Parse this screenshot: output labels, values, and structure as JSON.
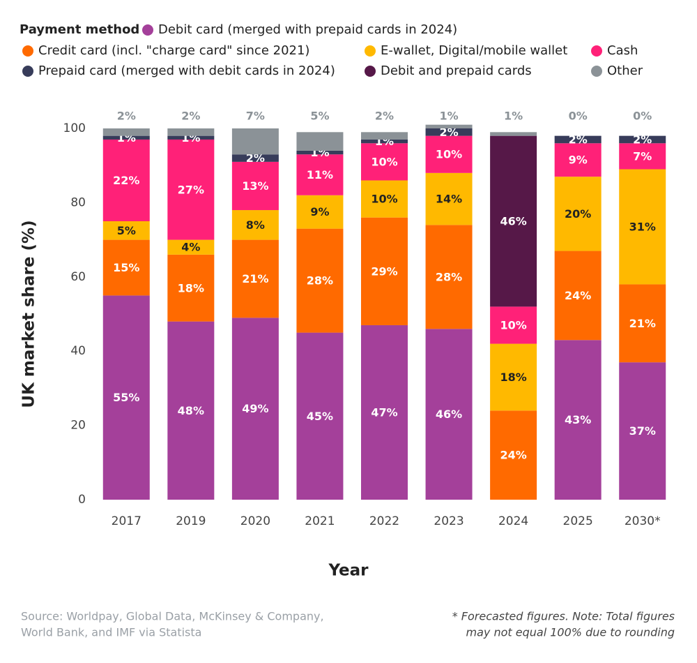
{
  "chart_data": {
    "type": "stacked_bar",
    "legend_title": "Payment method",
    "x_label": "Year",
    "y_label": "UK market share (%)",
    "categories": [
      "2017",
      "2019",
      "2020",
      "2021",
      "2022",
      "2023",
      "2024",
      "2025",
      "2030*"
    ],
    "ylim": [
      0,
      100
    ],
    "yticks": [
      0,
      20,
      40,
      60,
      80,
      100
    ],
    "grid": false,
    "series": [
      {
        "name": "Debit card (merged with prepaid cards in 2024)",
        "color": "#a4409a",
        "label_color": "#ffffff",
        "values": [
          55,
          48,
          49,
          45,
          47,
          46,
          null,
          43,
          37
        ],
        "value_labels": [
          "55%",
          "48%",
          "49%",
          "45%",
          "47%",
          "46%",
          null,
          "43%",
          "37%"
        ]
      },
      {
        "name": "Credit card (incl. \"charge card\" since 2021)",
        "color": "#ff6a00",
        "label_color": "#ffffff",
        "values": [
          15,
          18,
          21,
          28,
          29,
          28,
          24,
          24,
          21
        ],
        "value_labels": [
          "15%",
          "18%",
          "21%",
          "28%",
          "29%",
          "28%",
          "24%",
          "24%",
          "21%"
        ]
      },
      {
        "name": "E-wallet, Digital/mobile wallet",
        "color": "#ffb900",
        "label_color": "#222222",
        "values": [
          5,
          4,
          8,
          9,
          10,
          14,
          18,
          20,
          31
        ],
        "value_labels": [
          "5%",
          "4%",
          "8%",
          "9%",
          "10%",
          "14%",
          "18%",
          "20%",
          "31%"
        ]
      },
      {
        "name": "Cash",
        "color": "#ff2178",
        "label_color": "#ffffff",
        "values": [
          22,
          27,
          13,
          11,
          10,
          10,
          10,
          9,
          7
        ],
        "value_labels": [
          "22%",
          "27%",
          "13%",
          "11%",
          "10%",
          "10%",
          "10%",
          "9%",
          "7%"
        ]
      },
      {
        "name": "Prepaid card (merged with debit cards in 2024)",
        "color": "#373c5a",
        "label_color": "#ffffff",
        "values": [
          1,
          1,
          2,
          1,
          1,
          2,
          null,
          2,
          2
        ],
        "value_labels": [
          "1%",
          "1%",
          "2%",
          "1%",
          "1%",
          "2%",
          null,
          "2%",
          "2%"
        ]
      },
      {
        "name": "Debit and prepaid cards",
        "color": "#561848",
        "label_color": "#ffffff",
        "values": [
          null,
          null,
          null,
          null,
          null,
          null,
          46,
          null,
          null
        ],
        "value_labels": [
          null,
          null,
          null,
          null,
          null,
          null,
          "46%",
          null,
          null
        ]
      },
      {
        "name": "Other",
        "color": "#8b9297",
        "label_color": "#8b9297",
        "values": [
          2,
          2,
          7,
          5,
          2,
          1,
          1,
          0,
          0
        ],
        "value_labels": [
          "2%",
          "2%",
          "7%",
          "5%",
          "2%",
          "1%",
          "1%",
          "0%",
          "0%"
        ]
      }
    ],
    "source": [
      "Source: Worldpay, Global Data, McKinsey & Company,",
      "World Bank, and IMF via Statista"
    ],
    "note": [
      "* Forecasted figures. Note: Total figures",
      "may not equal 100% due to rounding"
    ]
  }
}
